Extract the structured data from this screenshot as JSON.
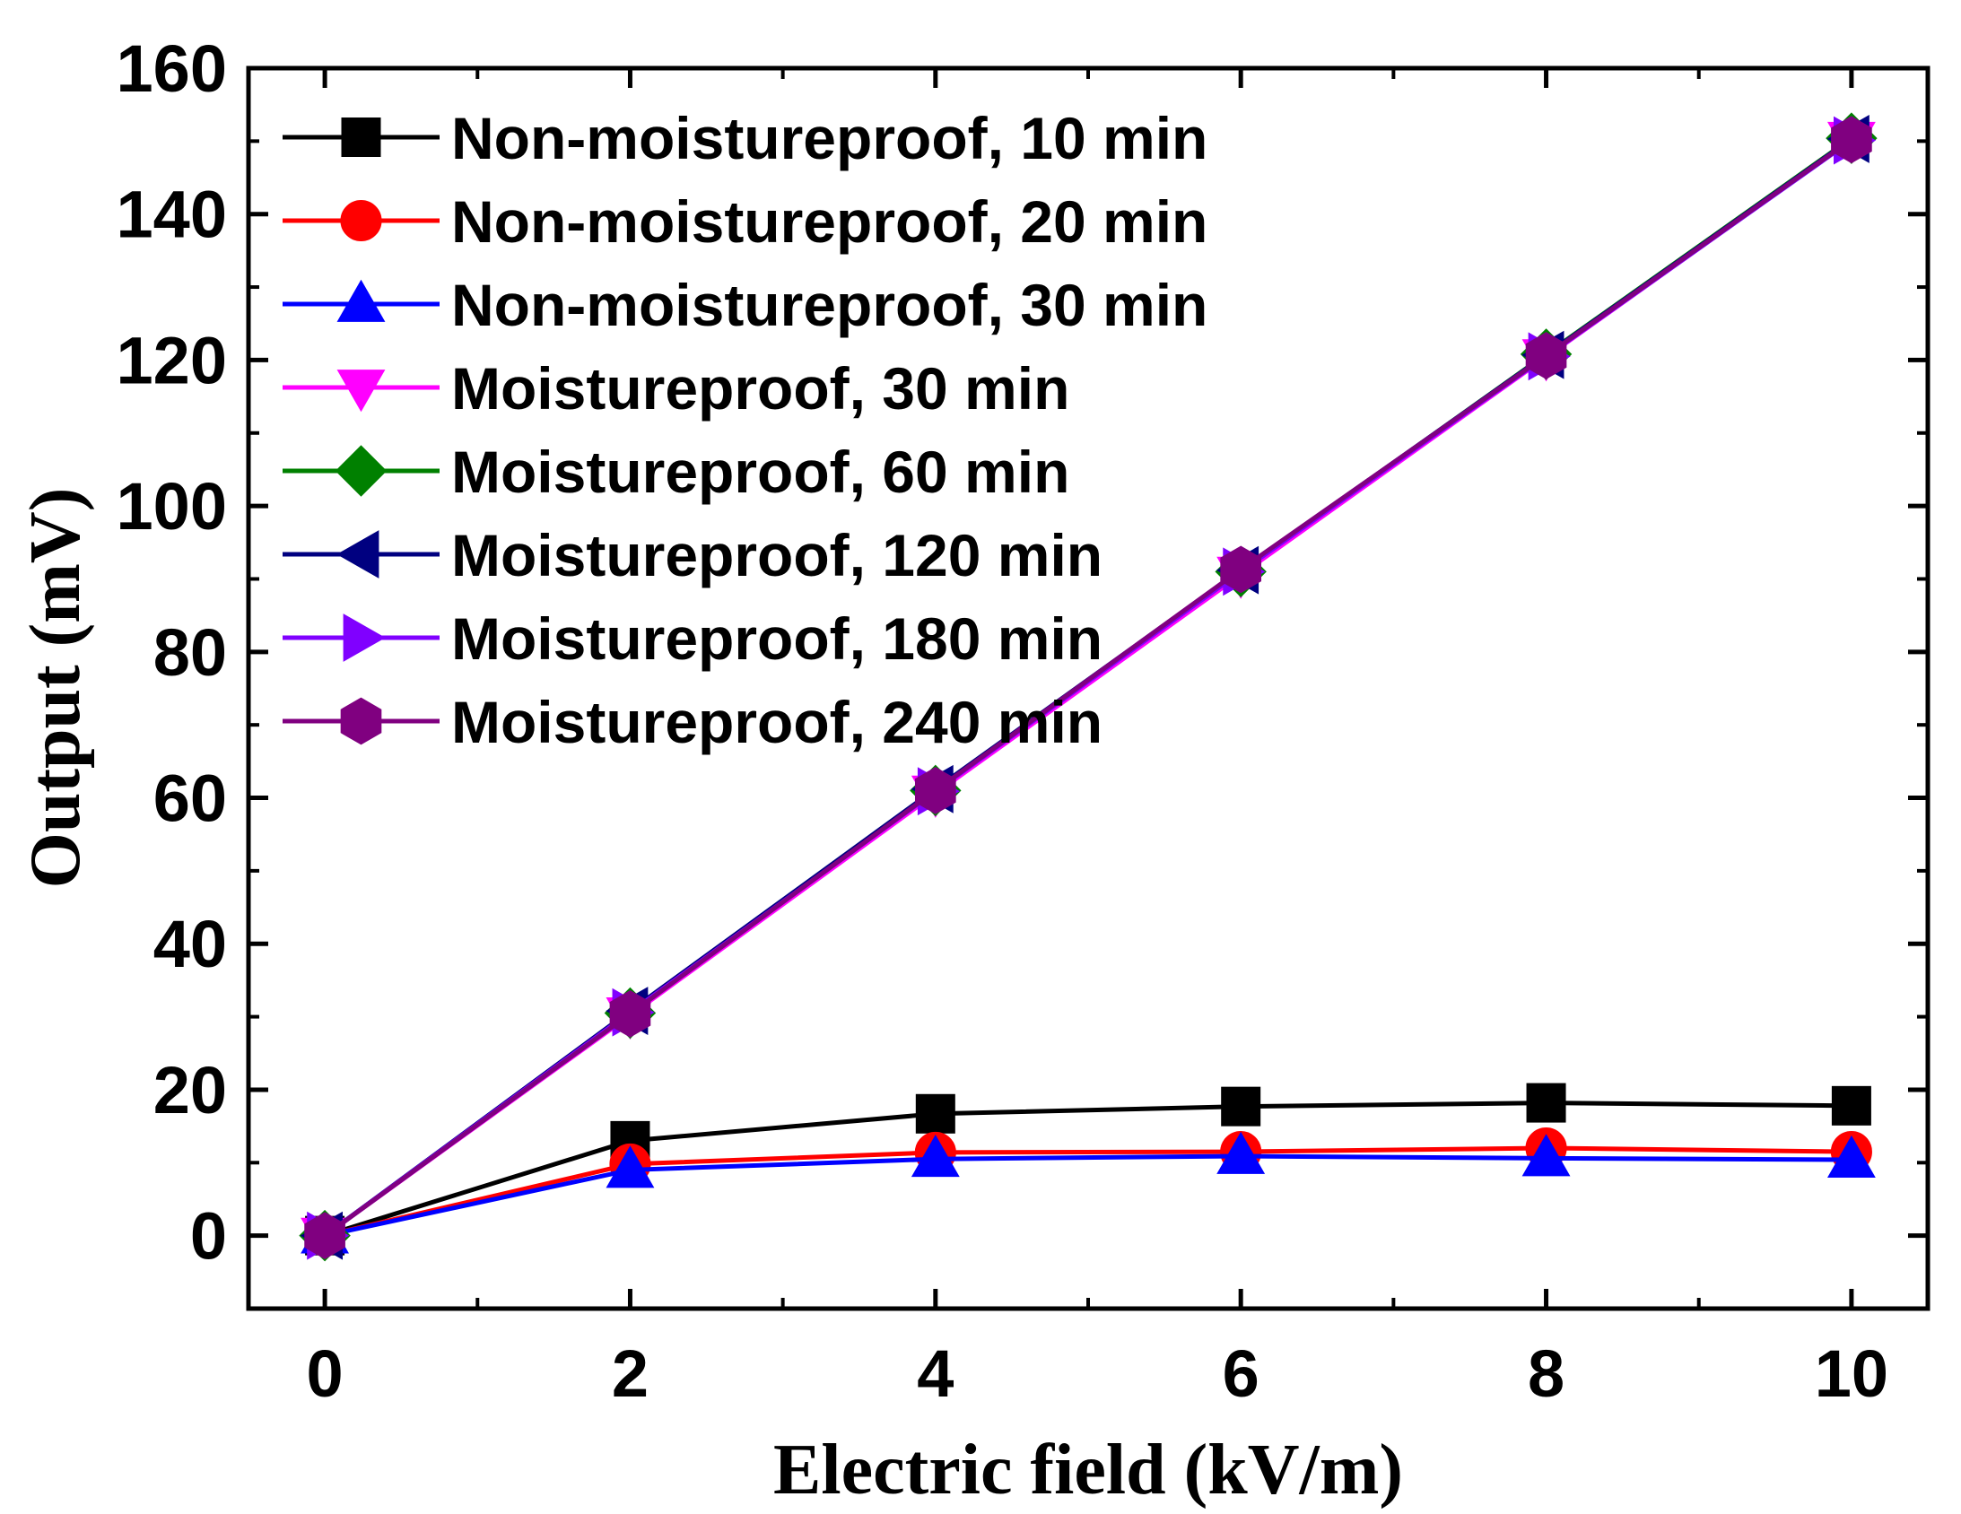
{
  "chart_data": {
    "type": "line",
    "title": "",
    "xlabel": "Electric field (kV/m)",
    "ylabel": "Output (mV)",
    "xlim": [
      -0.5,
      10.5
    ],
    "ylim": [
      -10,
      160
    ],
    "xticks": [
      0,
      2,
      4,
      6,
      8,
      10
    ],
    "yticks": [
      0,
      20,
      40,
      60,
      80,
      100,
      120,
      140,
      160
    ],
    "legend_position": "top-left",
    "x": [
      0,
      2,
      4,
      6,
      8,
      10
    ],
    "series": [
      {
        "name": "Non-moistureproof, 10 min",
        "color": "#000000",
        "marker": "square",
        "values": [
          0,
          13,
          16.7,
          17.7,
          18.2,
          17.8
        ]
      },
      {
        "name": "Non-moistureproof, 20 min",
        "color": "#ff0000",
        "marker": "circle",
        "values": [
          0,
          9.8,
          11.4,
          11.5,
          12.0,
          11.5
        ]
      },
      {
        "name": "Non-moistureproof, 30 min",
        "color": "#0000ff",
        "marker": "triangle-up",
        "values": [
          0,
          9.0,
          10.5,
          10.9,
          10.6,
          10.4
        ]
      },
      {
        "name": "Moistureproof, 30 min",
        "color": "#ff00ff",
        "marker": "triangle-down",
        "values": [
          0,
          30.2,
          60.6,
          90.6,
          120.4,
          150.2
        ]
      },
      {
        "name": "Moistureproof, 60 min",
        "color": "#008000",
        "marker": "diamond",
        "values": [
          0,
          30.5,
          61.0,
          91.0,
          120.8,
          150.4
        ]
      },
      {
        "name": "Moistureproof, 120 min",
        "color": "#000080",
        "marker": "triangle-left",
        "values": [
          0,
          30.8,
          61.2,
          91.2,
          120.7,
          150.3
        ]
      },
      {
        "name": "Moistureproof, 180 min",
        "color": "#8000ff",
        "marker": "triangle-right",
        "values": [
          0,
          30.6,
          60.9,
          91.0,
          120.5,
          150.1
        ]
      },
      {
        "name": "Moistureproof, 240 min",
        "color": "#800080",
        "marker": "hexagon",
        "values": [
          0,
          30.4,
          61.0,
          91.3,
          120.6,
          150.2
        ]
      }
    ]
  }
}
